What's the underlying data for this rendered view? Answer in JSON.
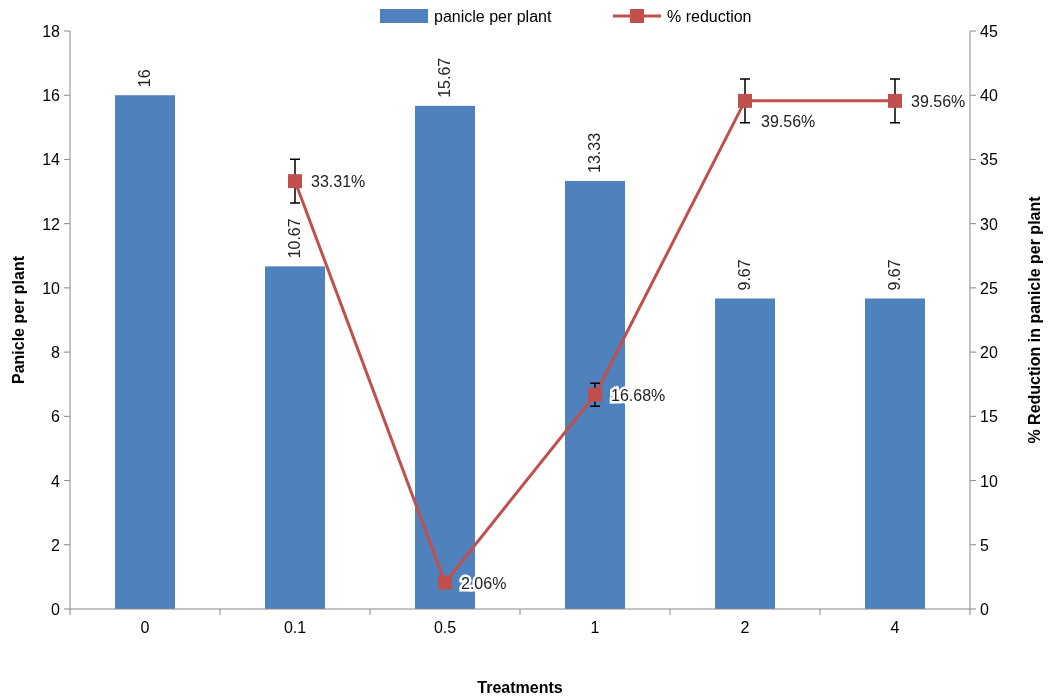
{
  "chart_data": {
    "type": "bar",
    "xlabel": "Treatments",
    "ylabel": "Panicle per plant",
    "y2label": "% Reduction in panicle per plant",
    "categories": [
      "0",
      "0.1",
      "0.5",
      "1",
      "2",
      "4"
    ],
    "series": [
      {
        "name": "panicle per plant",
        "color": "#4f81bd",
        "values": [
          16,
          10.67,
          15.67,
          13.33,
          9.67,
          9.67
        ],
        "data_labels": true
      },
      {
        "name": "% reduction",
        "type": "line",
        "axis": "y2",
        "color": "#c0504d",
        "marker": "square",
        "line_style": "solid",
        "values": [
          null,
          33.31,
          2.06,
          16.68,
          39.56,
          39.56
        ],
        "errors": [
          null,
          1.7,
          null,
          0.9,
          1.7,
          1.7
        ],
        "value_labels": [
          null,
          "33.31%",
          "2.06%",
          "16.68%",
          "39.56%",
          "39.56%"
        ]
      }
    ],
    "ylim": [
      0,
      18
    ],
    "yticks": [
      0,
      2,
      4,
      6,
      8,
      10,
      12,
      14,
      16,
      18
    ],
    "y2lim": [
      0,
      45
    ],
    "y2ticks": [
      0,
      5,
      10,
      15,
      20,
      25,
      30,
      35,
      40,
      45
    ],
    "grid": false,
    "legend": "top"
  }
}
